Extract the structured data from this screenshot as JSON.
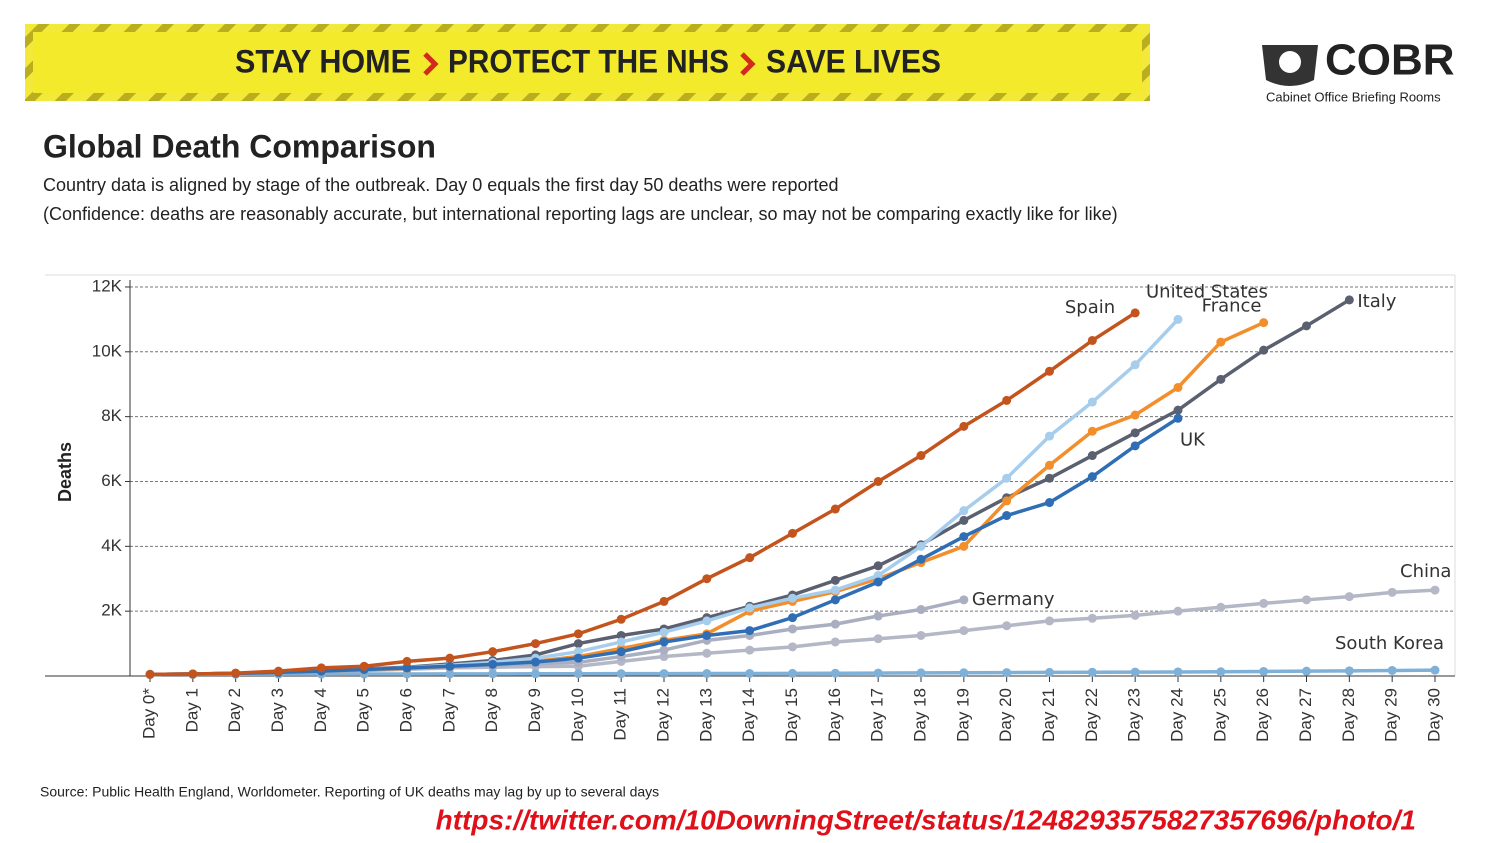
{
  "banner": {
    "phrases": [
      "STAY HOME",
      "PROTECT THE NHS",
      "SAVE LIVES"
    ]
  },
  "logo": {
    "name": "COBR",
    "subtitle": "Cabinet Office Briefing Rooms"
  },
  "chart_data": {
    "type": "line",
    "title": "Global Death Comparison",
    "subtitle": [
      "Country data is aligned by stage of the outbreak. Day 0 equals the first day 50 deaths were reported",
      "(Confidence: deaths are reasonably accurate, but international reporting lags are unclear, so may not be comparing exactly like for like)"
    ],
    "y_label": "Deaths",
    "categories": [
      "Day 0*",
      "Day 1",
      "Day 2",
      "Day 3",
      "Day 4",
      "Day 5",
      "Day 6",
      "Day 7",
      "Day 8",
      "Day 9",
      "Day 10",
      "Day 11",
      "Day 12",
      "Day 13",
      "Day 14",
      "Day 15",
      "Day 16",
      "Day 17",
      "Day 18",
      "Day 19",
      "Day 20",
      "Day 21",
      "Day 22",
      "Day 23",
      "Day 24",
      "Day 25",
      "Day 26",
      "Day 27",
      "Day 28",
      "Day 29",
      "Day 30"
    ],
    "ylim": [
      0,
      12400
    ],
    "yticks": [
      {
        "value": 2000,
        "label": "2K"
      },
      {
        "value": 4000,
        "label": "4K"
      },
      {
        "value": 6000,
        "label": "6K"
      },
      {
        "value": 8000,
        "label": "8K"
      },
      {
        "value": 10000,
        "label": "10K"
      },
      {
        "value": 12000,
        "label": "12K"
      }
    ],
    "grid": true,
    "series": [
      {
        "name": "China",
        "color": "#b3b7c6",
        "values": [
          50,
          60,
          80,
          100,
          130,
          170,
          210,
          250,
          270,
          290,
          300,
          450,
          600,
          700,
          800,
          900,
          1050,
          1150,
          1250,
          1400,
          1550,
          1700,
          1780,
          1870,
          2000,
          2120,
          2240,
          2350,
          2450,
          2580,
          2650
        ]
      },
      {
        "name": "South Korea",
        "color": "#7fb0d8",
        "values": [
          50,
          52,
          54,
          56,
          58,
          60,
          62,
          64,
          66,
          68,
          70,
          72,
          74,
          76,
          78,
          80,
          85,
          90,
          95,
          100,
          105,
          110,
          115,
          120,
          125,
          130,
          140,
          150,
          160,
          170,
          180
        ]
      },
      {
        "name": "Germany",
        "color": "#a9aec0",
        "values": [
          50,
          60,
          80,
          110,
          150,
          190,
          230,
          280,
          330,
          380,
          420,
          600,
          800,
          1100,
          1250,
          1450,
          1600,
          1850,
          2050,
          2350,
          null,
          null,
          null,
          null,
          null,
          null,
          null,
          null,
          null,
          null,
          null
        ]
      },
      {
        "name": "Italy",
        "color": "#5b6070",
        "values": [
          50,
          60,
          80,
          120,
          170,
          220,
          270,
          370,
          480,
          650,
          1000,
          1250,
          1450,
          1800,
          2150,
          2500,
          2950,
          3400,
          4050,
          4800,
          5500,
          6100,
          6800,
          7500,
          8200,
          9150,
          10050,
          10800,
          11600,
          null,
          null
        ]
      },
      {
        "name": "France",
        "color": "#f28e2b",
        "values": [
          50,
          60,
          80,
          110,
          150,
          190,
          240,
          300,
          370,
          450,
          600,
          850,
          1100,
          1300,
          2000,
          2300,
          2600,
          3000,
          3500,
          4000,
          5400,
          6500,
          7550,
          8050,
          8900,
          10300,
          10900,
          null,
          null,
          null,
          null
        ]
      },
      {
        "name": "United States",
        "color": "#a6cdec",
        "values": [
          50,
          60,
          80,
          110,
          150,
          200,
          260,
          330,
          420,
          550,
          750,
          1050,
          1350,
          1700,
          2100,
          2400,
          2650,
          3100,
          4000,
          5100,
          6100,
          7400,
          8450,
          9600,
          11000,
          null,
          null,
          null,
          null,
          null,
          null
        ]
      },
      {
        "name": "UK",
        "color": "#2f6eb4",
        "values": [
          50,
          60,
          80,
          110,
          150,
          200,
          250,
          300,
          360,
          430,
          550,
          750,
          1050,
          1250,
          1400,
          1800,
          2350,
          2900,
          3600,
          4300,
          4950,
          5350,
          6150,
          7100,
          7950,
          null,
          null,
          null,
          null,
          null,
          null
        ]
      },
      {
        "name": "Spain",
        "color": "#c4541d",
        "values": [
          50,
          60,
          90,
          150,
          250,
          300,
          450,
          550,
          750,
          1000,
          1300,
          1750,
          2300,
          3000,
          3650,
          4400,
          5150,
          6000,
          6800,
          7700,
          8500,
          9400,
          10350,
          11200,
          null,
          null,
          null,
          null,
          null,
          null,
          null
        ]
      }
    ]
  },
  "source": "Source: Public Health England, Worldometer. Reporting of UK deaths may lag by up to several days",
  "url": "https://twitter.com/10DowningStreet/status/1248293575827357696/photo/1"
}
